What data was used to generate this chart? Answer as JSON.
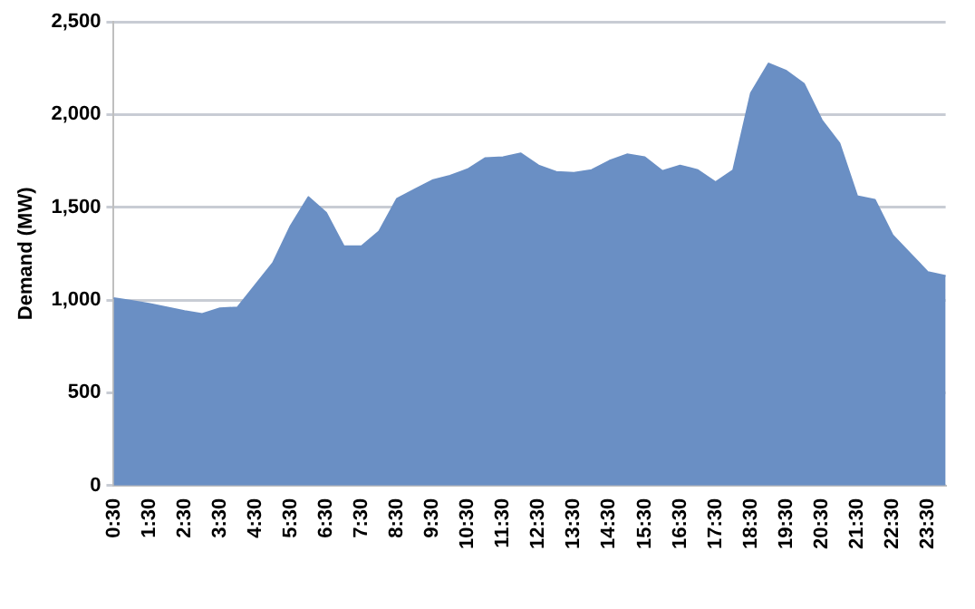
{
  "chart_data": {
    "type": "area",
    "ylabel": "Demand (MW)",
    "categories": [
      "0:30",
      null,
      "1:30",
      null,
      "2:30",
      null,
      "3:30",
      null,
      "4:30",
      null,
      "5:30",
      null,
      "6:30",
      null,
      "7:30",
      null,
      "8:30",
      null,
      "9:30",
      null,
      "10:30",
      null,
      "11:30",
      null,
      "12:30",
      null,
      "13:30",
      null,
      "14:30",
      null,
      "15:30",
      null,
      "16:30",
      null,
      "17:30",
      null,
      "18:30",
      null,
      "19:30",
      null,
      "20:30",
      null,
      "21:30",
      null,
      "22:30",
      null,
      "23:30",
      null
    ],
    "series": [
      {
        "color": "#6a8fc4",
        "values": [
          1010,
          995,
          980,
          960,
          940,
          925,
          955,
          960,
          1080,
          1200,
          1400,
          1555,
          1470,
          1290,
          1290,
          1370,
          1545,
          1595,
          1645,
          1670,
          1705,
          1765,
          1770,
          1790,
          1725,
          1690,
          1685,
          1700,
          1750,
          1785,
          1770,
          1695,
          1725,
          1700,
          1635,
          1700,
          2115,
          2275,
          2235,
          2165,
          1970,
          1845,
          1560,
          1540,
          1350,
          1250,
          1150,
          1130
        ]
      }
    ],
    "ylim": [
      0,
      2500
    ],
    "yticks": [
      0,
      500,
      {
        "value": 1000,
        "label": "1,000"
      },
      {
        "value": 1500,
        "label": "1,500"
      },
      {
        "value": 2000,
        "label": "2,000"
      },
      {
        "value": 2500,
        "label": "2,500"
      }
    ],
    "grid": "y",
    "legend": false,
    "marker": "none"
  }
}
